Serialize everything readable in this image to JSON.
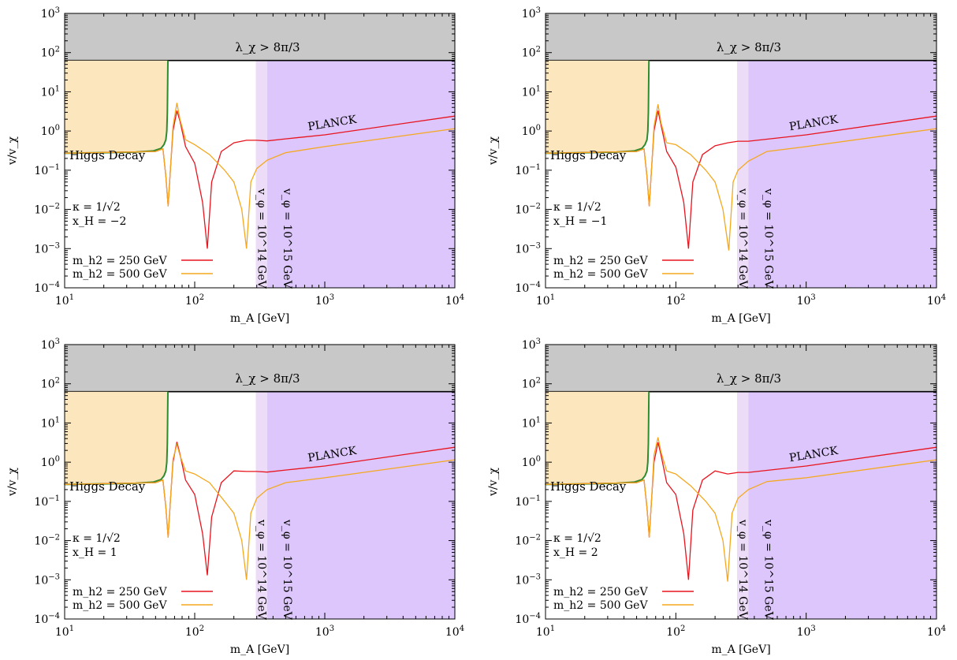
{
  "figure": {
    "panels": [
      {
        "id": "top-left",
        "kappa_label": "κ = 1/√2",
        "xh_label": "x_H = −2"
      },
      {
        "id": "top-right",
        "kappa_label": "κ = 1/√2",
        "xh_label": "x_H = −1"
      },
      {
        "id": "bottom-left",
        "kappa_label": "κ = 1/√2",
        "xh_label": "x_H = 1"
      },
      {
        "id": "bottom-right",
        "kappa_label": "κ = 1/√2",
        "xh_label": "x_H = 2"
      }
    ]
  },
  "colors": {
    "gray_region": "#c8c8c8",
    "higgs_region": "#fbe6bd",
    "higgs_boundary": "#2e8b2e",
    "purple_light": "#ecdcf8",
    "purple": "#dcc6fb",
    "series_250": "#e8141e",
    "series_500": "#f5a81e",
    "axis": "#000000"
  },
  "chart_data": [
    {
      "type": "line",
      "xscale": "log",
      "yscale": "log",
      "xlim": [
        10,
        10000
      ],
      "ylim": [
        0.0001,
        1000
      ],
      "xlabel": "m_A [GeV]",
      "ylabel": "v/v_χ",
      "xticks": [
        "10^1",
        "10^2",
        "10^3",
        "10^4"
      ],
      "yticks": [
        "10^-4",
        "10^-3",
        "10^-2",
        "10^-1",
        "10^0",
        "10^1",
        "10^2",
        "10^3"
      ],
      "annotations": {
        "gray": "λ_χ > 8π/3",
        "higgs": "Higgs Decay",
        "planck": "PLANCK",
        "v14": "v_φ = 10^14 GeV",
        "v15": "v_φ = 10^15 GeV"
      },
      "regions": {
        "gray_min_y": 63,
        "vphi14_x": [
          295,
          360
        ],
        "vphi15_x": 360
      },
      "series": [
        {
          "name": "m_h2 = 250 GeV",
          "x": [
            10,
            50,
            57,
            60,
            62.5,
            65,
            68,
            73,
            77,
            85,
            100,
            115,
            125,
            135,
            160,
            200,
            250,
            300,
            360,
            500,
            1000,
            10000
          ],
          "y": [
            0.27,
            0.3,
            0.35,
            0.07,
            0.012,
            0.1,
            1.0,
            3.3,
            1.8,
            0.4,
            0.15,
            0.015,
            0.001,
            0.05,
            0.3,
            0.5,
            0.58,
            0.58,
            0.56,
            0.63,
            0.8,
            2.4
          ]
        },
        {
          "name": "m_h2 = 500 GeV",
          "x": [
            10,
            50,
            57,
            60,
            62.5,
            65,
            68,
            73,
            77,
            85,
            100,
            130,
            170,
            200,
            230,
            250,
            270,
            300,
            360,
            500,
            1000,
            10000
          ],
          "y": [
            0.27,
            0.3,
            0.35,
            0.07,
            0.012,
            0.1,
            1.3,
            5.2,
            2.0,
            0.6,
            0.45,
            0.25,
            0.1,
            0.05,
            0.01,
            0.001,
            0.05,
            0.11,
            0.18,
            0.28,
            0.4,
            1.15
          ]
        }
      ]
    },
    {
      "type": "line",
      "xscale": "log",
      "yscale": "log",
      "xlim": [
        10,
        10000
      ],
      "ylim": [
        0.0001,
        1000
      ],
      "xlabel": "m_A [GeV]",
      "ylabel": "v/v_χ",
      "xticks": [
        "10^1",
        "10^2",
        "10^3",
        "10^4"
      ],
      "yticks": [
        "10^-4",
        "10^-3",
        "10^-2",
        "10^-1",
        "10^0",
        "10^1",
        "10^2",
        "10^3"
      ],
      "annotations": {
        "gray": "λ_χ > 8π/3",
        "higgs": "Higgs Decay",
        "planck": "PLANCK",
        "v14": "v_φ = 10^14 GeV",
        "v15": "v_φ = 10^15 GeV"
      },
      "regions": {
        "gray_min_y": 63,
        "vphi14_x": [
          295,
          360
        ],
        "vphi15_x": 360
      },
      "series": [
        {
          "name": "m_h2 = 250 GeV",
          "x": [
            10,
            50,
            57,
            60,
            62.5,
            65,
            68,
            73,
            77,
            85,
            100,
            115,
            125,
            135,
            160,
            200,
            250,
            300,
            360,
            500,
            1000,
            10000
          ],
          "y": [
            0.27,
            0.3,
            0.35,
            0.07,
            0.012,
            0.1,
            1.0,
            3.3,
            1.4,
            0.3,
            0.12,
            0.015,
            0.001,
            0.05,
            0.25,
            0.42,
            0.5,
            0.55,
            0.55,
            0.62,
            0.8,
            2.4
          ]
        },
        {
          "name": "m_h2 = 500 GeV",
          "x": [
            10,
            50,
            57,
            60,
            62.5,
            65,
            68,
            73,
            77,
            85,
            100,
            130,
            170,
            200,
            230,
            255,
            275,
            300,
            360,
            500,
            1000,
            10000
          ],
          "y": [
            0.27,
            0.3,
            0.35,
            0.07,
            0.012,
            0.1,
            1.3,
            4.8,
            1.6,
            0.5,
            0.45,
            0.25,
            0.1,
            0.05,
            0.01,
            0.0009,
            0.05,
            0.1,
            0.17,
            0.3,
            0.4,
            1.15
          ]
        }
      ]
    },
    {
      "type": "line",
      "xscale": "log",
      "yscale": "log",
      "xlim": [
        10,
        10000
      ],
      "ylim": [
        0.0001,
        1000
      ],
      "xlabel": "m_A [GeV]",
      "ylabel": "v/v_χ",
      "xticks": [
        "10^1",
        "10^2",
        "10^3",
        "10^4"
      ],
      "yticks": [
        "10^-4",
        "10^-3",
        "10^-2",
        "10^-1",
        "10^0",
        "10^1",
        "10^2",
        "10^3"
      ],
      "annotations": {
        "gray": "λ_χ > 8π/3",
        "higgs": "Higgs Decay",
        "planck": "PLANCK",
        "v14": "v_φ = 10^14 GeV",
        "v15": "v_φ = 10^15 GeV"
      },
      "regions": {
        "gray_min_y": 63,
        "vphi14_x": [
          295,
          360
        ],
        "vphi15_x": 360
      },
      "series": [
        {
          "name": "m_h2 = 250 GeV",
          "x": [
            10,
            50,
            57,
            60,
            62.5,
            65,
            68,
            73,
            77,
            85,
            100,
            115,
            125,
            135,
            160,
            200,
            250,
            300,
            360,
            500,
            1000,
            10000
          ],
          "y": [
            0.27,
            0.3,
            0.35,
            0.07,
            0.012,
            0.1,
            1.0,
            3.3,
            1.6,
            0.35,
            0.15,
            0.015,
            0.0013,
            0.04,
            0.3,
            0.6,
            0.58,
            0.58,
            0.56,
            0.63,
            0.8,
            2.4
          ]
        },
        {
          "name": "m_h2 = 500 GeV",
          "x": [
            10,
            50,
            57,
            60,
            62.5,
            65,
            68,
            73,
            77,
            85,
            100,
            130,
            170,
            200,
            230,
            250,
            270,
            300,
            360,
            500,
            1000,
            10000
          ],
          "y": [
            0.27,
            0.3,
            0.35,
            0.07,
            0.012,
            0.1,
            1.2,
            2.8,
            1.5,
            0.6,
            0.5,
            0.3,
            0.1,
            0.05,
            0.01,
            0.001,
            0.05,
            0.12,
            0.2,
            0.3,
            0.4,
            1.15
          ]
        }
      ]
    },
    {
      "type": "line",
      "xscale": "log",
      "yscale": "log",
      "xlim": [
        10,
        10000
      ],
      "ylim": [
        0.0001,
        1000
      ],
      "xlabel": "m_A [GeV]",
      "ylabel": "v/v_χ",
      "xticks": [
        "10^1",
        "10^2",
        "10^3",
        "10^4"
      ],
      "yticks": [
        "10^-4",
        "10^-3",
        "10^-2",
        "10^-1",
        "10^0",
        "10^1",
        "10^2",
        "10^3"
      ],
      "annotations": {
        "gray": "λ_χ > 8π/3",
        "higgs": "Higgs Decay",
        "planck": "PLANCK",
        "v14": "v_φ = 10^14 GeV",
        "v15": "v_φ = 10^15 GeV"
      },
      "regions": {
        "gray_min_y": 63,
        "vphi14_x": [
          295,
          360
        ],
        "vphi15_x": 360
      },
      "series": [
        {
          "name": "m_h2 = 250 GeV",
          "x": [
            10,
            50,
            57,
            60,
            62.5,
            65,
            68,
            73,
            77,
            85,
            100,
            115,
            125,
            135,
            160,
            200,
            250,
            300,
            360,
            500,
            1000,
            10000
          ],
          "y": [
            0.27,
            0.3,
            0.35,
            0.07,
            0.012,
            0.1,
            1.0,
            3.2,
            1.5,
            0.3,
            0.15,
            0.015,
            0.001,
            0.06,
            0.35,
            0.6,
            0.5,
            0.55,
            0.55,
            0.62,
            0.8,
            2.4
          ]
        },
        {
          "name": "m_h2 = 500 GeV",
          "x": [
            10,
            50,
            57,
            60,
            62.5,
            65,
            68,
            73,
            77,
            85,
            100,
            130,
            170,
            200,
            230,
            250,
            270,
            300,
            360,
            500,
            1000,
            10000
          ],
          "y": [
            0.27,
            0.3,
            0.35,
            0.07,
            0.012,
            0.1,
            1.5,
            4.3,
            1.8,
            0.6,
            0.5,
            0.25,
            0.1,
            0.05,
            0.01,
            0.0009,
            0.05,
            0.12,
            0.2,
            0.32,
            0.4,
            1.15
          ]
        }
      ]
    }
  ]
}
